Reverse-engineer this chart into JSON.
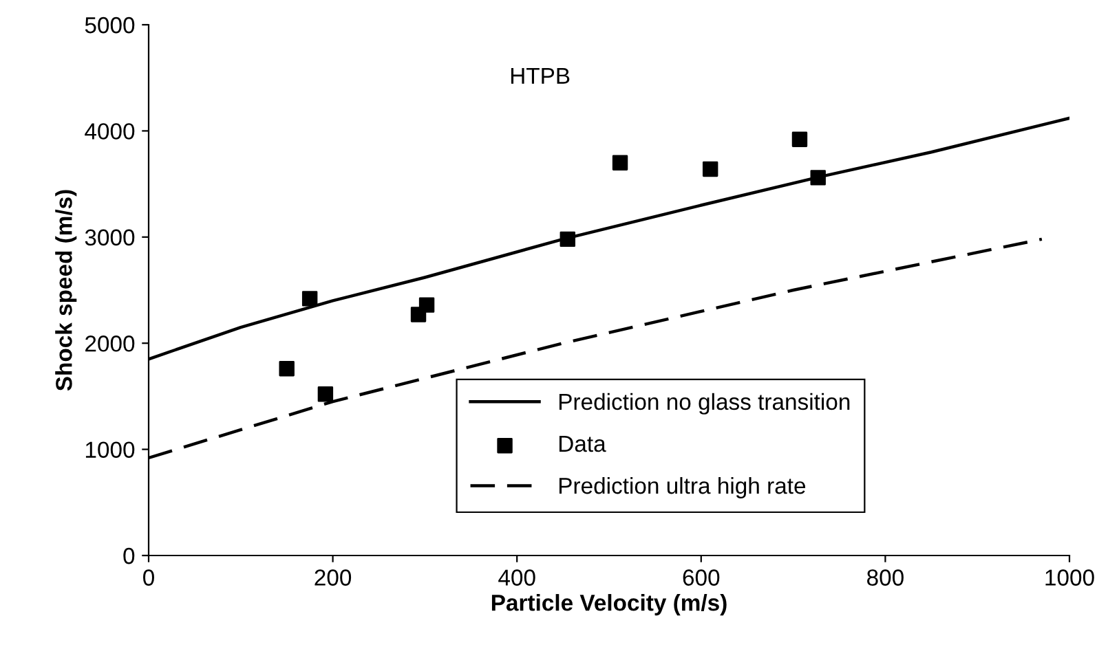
{
  "chart_data": {
    "type": "line",
    "xlabel": "Particle Velocity (m/s)",
    "ylabel": "Shock speed (m/s)",
    "annotations": [
      "HTPB"
    ],
    "xlim": [
      0,
      1000
    ],
    "ylim": [
      0,
      5000
    ],
    "xticks": [
      0,
      200,
      400,
      600,
      800,
      1000
    ],
    "yticks": [
      0,
      1000,
      2000,
      3000,
      4000,
      5000
    ],
    "grid": false,
    "legend": "bottom",
    "series": [
      {
        "name": "Prediction no glass transition",
        "color": "#000000",
        "line_style": "solid",
        "marker": "none",
        "x": [
          0,
          100,
          200,
          300,
          450,
          600,
          730,
          850,
          1000
        ],
        "values": [
          1850,
          2150,
          2400,
          2620,
          2980,
          3300,
          3570,
          3800,
          4120
        ]
      },
      {
        "name": "Data",
        "type": "scatter",
        "color": "#000000",
        "marker": "square",
        "x": [
          150,
          175,
          192,
          293,
          302,
          455,
          512,
          610,
          707,
          727
        ],
        "values": [
          1760,
          2420,
          1520,
          2270,
          2360,
          2980,
          3700,
          3640,
          3920,
          3560
        ]
      },
      {
        "name": "Prediction ultra high rate",
        "color": "#000000",
        "line_style": "dashed",
        "marker": "none",
        "x": [
          0,
          200,
          450,
          700,
          970
        ],
        "values": [
          920,
          1450,
          2000,
          2500,
          2980
        ]
      }
    ]
  }
}
